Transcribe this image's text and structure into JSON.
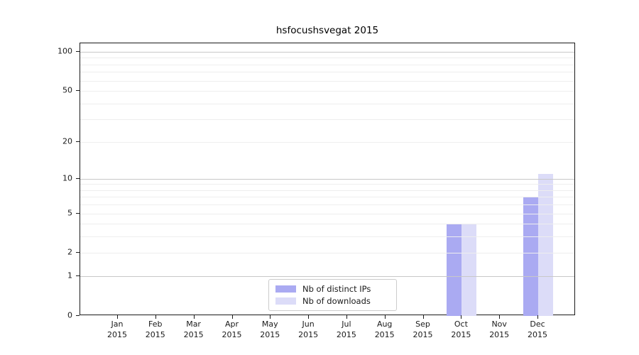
{
  "chart_data": {
    "type": "bar",
    "title": "hsfocushsvegat 2015",
    "categories": [
      {
        "month": "Jan",
        "year": "2015"
      },
      {
        "month": "Feb",
        "year": "2015"
      },
      {
        "month": "Mar",
        "year": "2015"
      },
      {
        "month": "Apr",
        "year": "2015"
      },
      {
        "month": "May",
        "year": "2015"
      },
      {
        "month": "Jun",
        "year": "2015"
      },
      {
        "month": "Jul",
        "year": "2015"
      },
      {
        "month": "Aug",
        "year": "2015"
      },
      {
        "month": "Sep",
        "year": "2015"
      },
      {
        "month": "Oct",
        "year": "2015"
      },
      {
        "month": "Nov",
        "year": "2015"
      },
      {
        "month": "Dec",
        "year": "2015"
      }
    ],
    "series": [
      {
        "name": "Nb of distinct IPs",
        "color": "#aaaaf2",
        "values": [
          0,
          0,
          0,
          0,
          0,
          0,
          0,
          0,
          0,
          4,
          0,
          7
        ]
      },
      {
        "name": "Nb of downloads",
        "color": "#dcdcf8",
        "values": [
          0,
          0,
          0,
          0,
          0,
          0,
          0,
          0,
          0,
          4,
          0,
          11
        ]
      }
    ],
    "yscale": "log1p",
    "y_ticks": [
      0,
      1,
      2,
      5,
      10,
      20,
      50,
      100
    ],
    "y_major_gridlines": [
      1,
      10,
      100
    ],
    "y_minor_gridlines": [
      2,
      3,
      4,
      5,
      6,
      7,
      8,
      9,
      20,
      30,
      40,
      50,
      60,
      70,
      80,
      90
    ],
    "ylim": [
      0,
      116
    ],
    "xlabel": "",
    "ylabel": "",
    "grid": true,
    "legend_position": "lower center"
  },
  "colors": {
    "background": "#ffffff",
    "axis": "#1a1a1a",
    "major_grid": "#c8c8c8",
    "minor_grid": "#eeeeee",
    "text": "#1a1a1a",
    "legend_border": "#cccccc"
  }
}
